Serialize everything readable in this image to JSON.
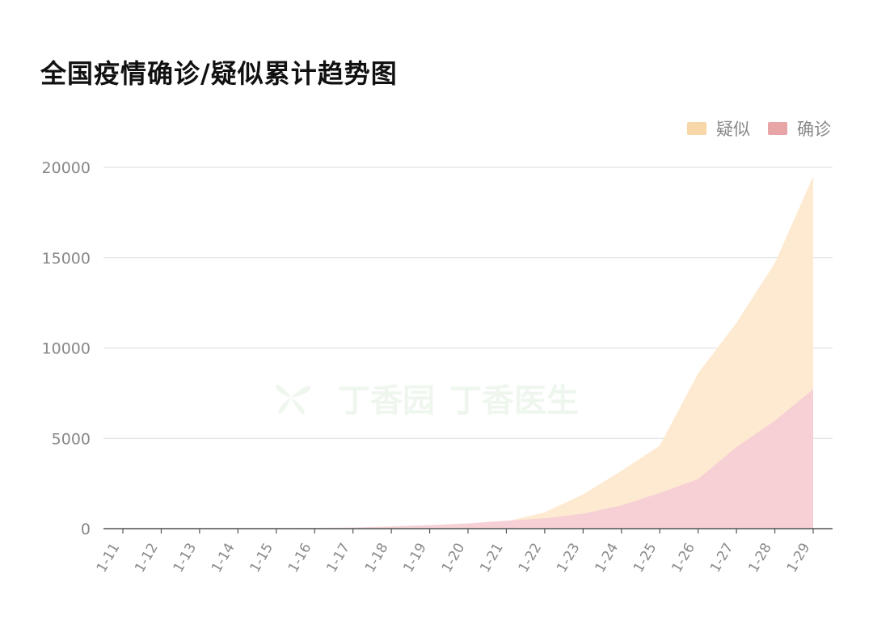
{
  "title": "全国疫情确诊/疑似累计趋势图",
  "watermark": {
    "text_1": "丁香园",
    "text_2": "丁香医生"
  },
  "colors": {
    "suspected_fill": "#fde9cf",
    "confirmed_fill": "#f6cfd4",
    "suspected_legend": "#f7d7a8",
    "confirmed_legend": "#e7a5a8",
    "grid": "#dddddd",
    "axis": "#555555"
  },
  "chart_data": {
    "type": "area",
    "title": "全国疫情确诊/疑似累计趋势图",
    "categories": [
      "1-11",
      "1-12",
      "1-13",
      "1-14",
      "1-15",
      "1-16",
      "1-17",
      "1-18",
      "1-19",
      "1-20",
      "1-21",
      "1-22",
      "1-23",
      "1-24",
      "1-25",
      "1-26",
      "1-27",
      "1-28",
      "1-29"
    ],
    "legend": [
      "疑似",
      "确诊"
    ],
    "legend_position": "top-right",
    "stacked": false,
    "grid": true,
    "ylim": [
      0,
      20000
    ],
    "yticks": [
      0,
      5000,
      10000,
      15000,
      20000
    ],
    "series": [
      {
        "name": "疑似",
        "values": [
          0,
          0,
          0,
          0,
          0,
          0,
          0,
          0,
          0,
          100,
          400,
          900,
          1900,
          3200,
          4600,
          8600,
          11400,
          14700,
          19500
        ]
      },
      {
        "name": "确诊",
        "values": [
          41,
          41,
          41,
          41,
          41,
          45,
          62,
          121,
          198,
          291,
          440,
          571,
          830,
          1287,
          1975,
          2744,
          4515,
          5974,
          7711
        ]
      }
    ]
  }
}
